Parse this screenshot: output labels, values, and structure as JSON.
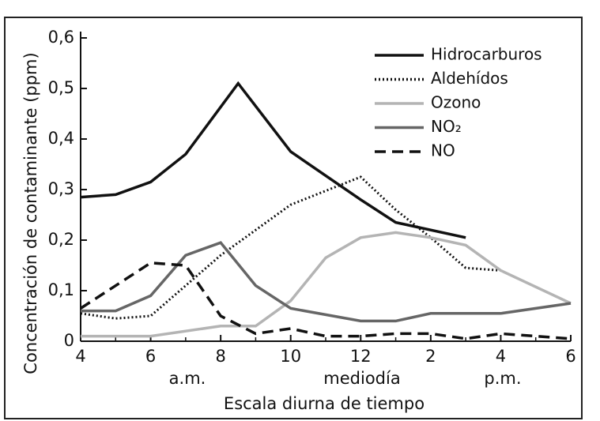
{
  "chart_data": {
    "type": "line",
    "ylabel": "Concentración de contaminante (ppm)",
    "xlabel": "Escala diurna de tiempo",
    "annotations": [
      "a.m.",
      "mediodía",
      "p.m."
    ],
    "xlim": [
      4,
      18
    ],
    "xticks": [
      4,
      6,
      8,
      10,
      12,
      {
        "value": 14,
        "label": "2"
      },
      {
        "value": 16,
        "label": "4"
      },
      {
        "value": 18,
        "label": "6"
      }
    ],
    "ylim": [
      0,
      0.6
    ],
    "yticks": [
      {
        "value": 0,
        "label": "0"
      },
      {
        "value": 0.1,
        "label": "0,1"
      },
      {
        "value": 0.2,
        "label": "0,2"
      },
      {
        "value": 0.3,
        "label": "0,3"
      },
      {
        "value": 0.4,
        "label": "0,4"
      },
      {
        "value": 0.5,
        "label": "0,5"
      },
      {
        "value": 0.6,
        "label": "0,6"
      }
    ],
    "legend": "upper right",
    "series": [
      {
        "name": "Hidrocarburos",
        "color": "#111111",
        "dash": "solid",
        "x": [
          4,
          5,
          6,
          7,
          8.5,
          10,
          12,
          13,
          15
        ],
        "values": [
          0.285,
          0.29,
          0.315,
          0.37,
          0.51,
          0.375,
          0.28,
          0.235,
          0.205
        ]
      },
      {
        "name": "Aldehídos",
        "color": "#111111",
        "dash": "dotted",
        "x": [
          4,
          5,
          6,
          8,
          10,
          12,
          13,
          14,
          15,
          16
        ],
        "values": [
          0.055,
          0.045,
          0.05,
          0.17,
          0.27,
          0.325,
          0.26,
          0.205,
          0.145,
          0.14
        ]
      },
      {
        "name": "Ozono",
        "color": "#b4b4b4",
        "dash": "solid",
        "x": [
          4,
          6,
          8,
          9,
          10,
          11,
          12,
          13,
          14,
          15,
          16,
          18
        ],
        "values": [
          0.01,
          0.01,
          0.03,
          0.03,
          0.08,
          0.165,
          0.205,
          0.215,
          0.205,
          0.19,
          0.14,
          0.075
        ]
      },
      {
        "name": "NO₂",
        "color": "#666666",
        "dash": "solid",
        "x": [
          4,
          5,
          6,
          7,
          8,
          9,
          10,
          12,
          13,
          14,
          16,
          18
        ],
        "values": [
          0.06,
          0.06,
          0.09,
          0.17,
          0.195,
          0.11,
          0.065,
          0.04,
          0.04,
          0.055,
          0.055,
          0.075
        ]
      },
      {
        "name": "NO",
        "color": "#111111",
        "dash": "dashed",
        "x": [
          4,
          6,
          7,
          8,
          9,
          10,
          11,
          12,
          13,
          14,
          15,
          16,
          18
        ],
        "values": [
          0.065,
          0.155,
          0.15,
          0.05,
          0.015,
          0.025,
          0.01,
          0.01,
          0.015,
          0.015,
          0.005,
          0.015,
          0.005
        ]
      }
    ]
  }
}
